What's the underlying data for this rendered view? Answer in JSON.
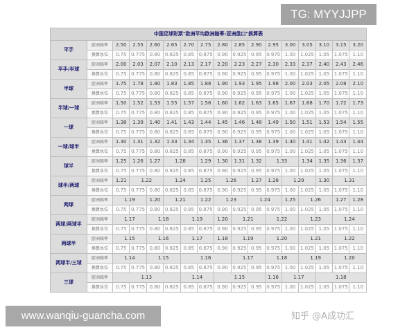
{
  "overlay": {
    "tg": "TG: MYYJJPP",
    "url": "www.wanqiu-guancha.com",
    "watermark": "知乎 @A成功汇"
  },
  "table": {
    "title": "中国足球彩票\"欧洲平均欧洲赔率-亚洲盘口\"换算表",
    "odds_label": "欧洲赔率",
    "water_label": "换算水位",
    "water_values": [
      "0.75",
      "0.775",
      "0.80",
      "0.825",
      "0.85",
      "0.875",
      "0.90",
      "0.925",
      "0.95",
      "0.975",
      "1.00",
      "1.025",
      "1.05",
      "1.075",
      "1.10"
    ],
    "groups": [
      {
        "handicap": "平手",
        "odds": [
          [
            "2.50",
            1
          ],
          [
            "2.55",
            1
          ],
          [
            "2.60",
            1
          ],
          [
            "2.65",
            1
          ],
          [
            "2.70",
            1
          ],
          [
            "2.75",
            1
          ],
          [
            "2.80",
            1
          ],
          [
            "2.85",
            1
          ],
          [
            "2.90",
            1
          ],
          [
            "2.95",
            1
          ],
          [
            "3.00",
            1
          ],
          [
            "3.05",
            1
          ],
          [
            "3.10",
            1
          ],
          [
            "3.15",
            1
          ],
          [
            "3.20",
            1
          ]
        ]
      },
      {
        "handicap": "平手/半球",
        "odds": [
          [
            "2.00",
            1
          ],
          [
            "2.03",
            1
          ],
          [
            "2.07",
            1
          ],
          [
            "2.10",
            1
          ],
          [
            "2.13",
            1
          ],
          [
            "2.17",
            1
          ],
          [
            "2.20",
            1
          ],
          [
            "2.23",
            1
          ],
          [
            "2.27",
            1
          ],
          [
            "2.30",
            1
          ],
          [
            "2.33",
            1
          ],
          [
            "2.37",
            1
          ],
          [
            "2.40",
            1
          ],
          [
            "2.43",
            1
          ],
          [
            "2.46",
            1
          ]
        ]
      },
      {
        "handicap": "半球",
        "odds": [
          [
            "1.75",
            1
          ],
          [
            "1.78",
            1
          ],
          [
            "1.80",
            1
          ],
          [
            "1.83",
            1
          ],
          [
            "1.85",
            1
          ],
          [
            "1.88",
            1
          ],
          [
            "1.90",
            1
          ],
          [
            "1.93",
            1
          ],
          [
            "1.95",
            1
          ],
          [
            "1.98",
            1
          ],
          [
            "2.00",
            1
          ],
          [
            "2.03",
            1
          ],
          [
            "2.05",
            1
          ],
          [
            "2.08",
            1
          ],
          [
            "2.10",
            1
          ]
        ]
      },
      {
        "handicap": "半球/一球",
        "odds": [
          [
            "1.50",
            1
          ],
          [
            "1.52",
            1
          ],
          [
            "1.53",
            1
          ],
          [
            "1.55",
            1
          ],
          [
            "1.57",
            1
          ],
          [
            "1.58",
            1
          ],
          [
            "1.60",
            1
          ],
          [
            "1.62",
            1
          ],
          [
            "1.63",
            1
          ],
          [
            "1.65",
            1
          ],
          [
            "1.67",
            1
          ],
          [
            "1.68",
            1
          ],
          [
            "1.70",
            1
          ],
          [
            "1.72",
            1
          ],
          [
            "1.73",
            1
          ]
        ]
      },
      {
        "handicap": "一球",
        "odds": [
          [
            "1.38",
            1
          ],
          [
            "1.39",
            1
          ],
          [
            "1.40",
            1
          ],
          [
            "1.41",
            1
          ],
          [
            "1.43",
            1
          ],
          [
            "1.44",
            1
          ],
          [
            "1.45",
            1
          ],
          [
            "1.46",
            1
          ],
          [
            "1.48",
            1
          ],
          [
            "1.49",
            1
          ],
          [
            "1.50",
            1
          ],
          [
            "1.51",
            1
          ],
          [
            "1.53",
            1
          ],
          [
            "1.54",
            1
          ],
          [
            "1.55",
            1
          ]
        ]
      },
      {
        "handicap": "一球/球半",
        "odds": [
          [
            "1.30",
            1
          ],
          [
            "1.31",
            1
          ],
          [
            "1.32",
            1
          ],
          [
            "1.33",
            1
          ],
          [
            "1.34",
            1
          ],
          [
            "1.35",
            1
          ],
          [
            "1.36",
            1
          ],
          [
            "1.37",
            1
          ],
          [
            "1.38",
            1
          ],
          [
            "1.39",
            1
          ],
          [
            "1.40",
            1
          ],
          [
            "1.41",
            1
          ],
          [
            "1.42",
            1
          ],
          [
            "1.43",
            1
          ],
          [
            "1.44",
            1
          ]
        ]
      },
      {
        "handicap": "球半",
        "odds": [
          [
            "1.25",
            1
          ],
          [
            "1.26",
            1
          ],
          [
            "1.27",
            1
          ],
          [
            "1.28",
            2
          ],
          [
            "1.29",
            1
          ],
          [
            "1.30",
            1
          ],
          [
            "1.31",
            1
          ],
          [
            "1.32",
            1
          ],
          [
            "1.33",
            2
          ],
          [
            "1.34",
            1
          ],
          [
            "1.35",
            1
          ],
          [
            "1.36",
            1
          ],
          [
            "1.37",
            1
          ]
        ]
      },
      {
        "handicap": "球半/两球",
        "odds": [
          [
            "1.21",
            1
          ],
          [
            "1.22",
            2
          ],
          [
            "1.24",
            2
          ],
          [
            "1.25",
            1
          ],
          [
            "1.26",
            2
          ],
          [
            "1.27",
            1
          ],
          [
            "1.28",
            1
          ],
          [
            "1.29",
            2
          ],
          [
            "1.30",
            1
          ],
          [
            "1.31",
            2
          ]
        ]
      },
      {
        "handicap": "两球",
        "odds": [
          [
            "1.19",
            2
          ],
          [
            "1.20",
            1
          ],
          [
            "1.21",
            2
          ],
          [
            "1.22",
            1
          ],
          [
            "1.23",
            2
          ],
          [
            "1.24",
            2
          ],
          [
            "1.25",
            1
          ],
          [
            "1.26",
            2
          ],
          [
            "1.27",
            1
          ],
          [
            "1.28",
            1
          ]
        ]
      },
      {
        "handicap": "两球/两球半",
        "odds": [
          [
            "1.17",
            2
          ],
          [
            "1.18",
            2
          ],
          [
            "1.19",
            2
          ],
          [
            "1.20",
            1
          ],
          [
            "1.21",
            2
          ],
          [
            "1.22",
            2
          ],
          [
            "1.23",
            2
          ],
          [
            "1.24",
            2
          ]
        ]
      },
      {
        "handicap": "两球半",
        "odds": [
          [
            "1.15",
            2
          ],
          [
            "1.16",
            2
          ],
          [
            "1.17",
            2
          ],
          [
            "1.18",
            1
          ],
          [
            "1.19",
            2
          ],
          [
            "1.20",
            2
          ],
          [
            "1.21",
            2
          ],
          [
            "1.22",
            2
          ]
        ]
      },
      {
        "handicap": "两球半/三球",
        "odds": [
          [
            "1.14",
            2
          ],
          [
            "1.15",
            2
          ],
          [
            "1.16",
            3
          ],
          [
            "1.17",
            2
          ],
          [
            "1.18",
            2
          ],
          [
            "1.19",
            2
          ],
          [
            "1.20",
            2
          ]
        ]
      },
      {
        "handicap": "三球",
        "odds": [
          [
            "1.13",
            4
          ],
          [
            "1.14",
            2
          ],
          [
            "1.15",
            3
          ],
          [
            "1.16",
            1
          ],
          [
            "1.17",
            2
          ],
          [
            "1.18",
            3
          ]
        ]
      }
    ]
  }
}
